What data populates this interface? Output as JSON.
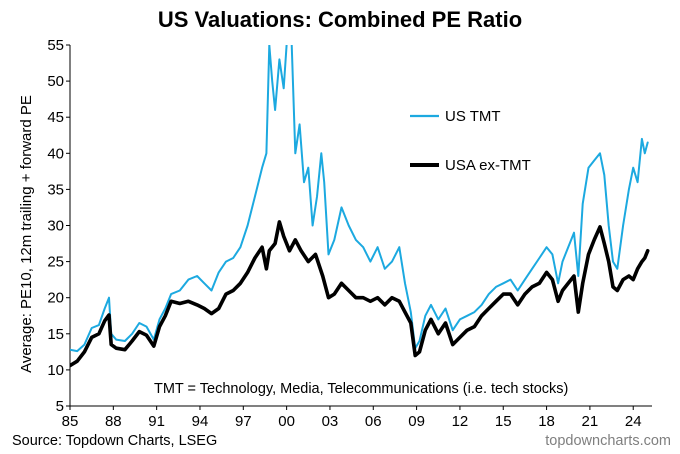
{
  "chart_data": {
    "type": "line",
    "title": "US Valuations: Combined PE Ratio",
    "ylabel": "Average: PE10, 12m trailing + forward PE",
    "xlabel": "",
    "xlim": [
      1985,
      2025.3
    ],
    "ylim": [
      5,
      55
    ],
    "x_ticks": [
      "85",
      "88",
      "91",
      "94",
      "97",
      "00",
      "03",
      "06",
      "09",
      "12",
      "15",
      "18",
      "21",
      "24"
    ],
    "y_ticks": [
      "5",
      "10",
      "15",
      "20",
      "25",
      "30",
      "35",
      "40",
      "45",
      "50",
      "55"
    ],
    "grid": false,
    "legend_position": "upper-center",
    "series": [
      {
        "name": "US TMT",
        "color": "#1ca9e0",
        "points": [
          [
            1985.0,
            12.8
          ],
          [
            1985.5,
            12.6
          ],
          [
            1986.0,
            13.5
          ],
          [
            1986.5,
            15.8
          ],
          [
            1987.0,
            16.2
          ],
          [
            1987.4,
            18.5
          ],
          [
            1987.7,
            20.0
          ],
          [
            1987.85,
            15.0
          ],
          [
            1988.2,
            14.2
          ],
          [
            1988.8,
            14.0
          ],
          [
            1989.3,
            15.0
          ],
          [
            1989.8,
            16.5
          ],
          [
            1990.3,
            16.0
          ],
          [
            1990.8,
            14.2
          ],
          [
            1991.2,
            17.0
          ],
          [
            1991.6,
            18.5
          ],
          [
            1992.0,
            20.5
          ],
          [
            1992.6,
            21.0
          ],
          [
            1993.2,
            22.5
          ],
          [
            1993.8,
            23.0
          ],
          [
            1994.3,
            22.0
          ],
          [
            1994.8,
            21.0
          ],
          [
            1995.3,
            23.5
          ],
          [
            1995.8,
            25.0
          ],
          [
            1996.3,
            25.5
          ],
          [
            1996.8,
            27.0
          ],
          [
            1997.3,
            30.0
          ],
          [
            1997.8,
            34.0
          ],
          [
            1998.3,
            38.0
          ],
          [
            1998.6,
            40.0
          ],
          [
            1998.8,
            55.0
          ],
          [
            1999.0,
            50.0
          ],
          [
            1999.2,
            46.0
          ],
          [
            1999.5,
            53.0
          ],
          [
            1999.8,
            49.0
          ],
          [
            2000.0,
            55.0
          ],
          [
            2000.3,
            58.0
          ],
          [
            2000.6,
            40.0
          ],
          [
            2000.9,
            44.0
          ],
          [
            2001.2,
            36.0
          ],
          [
            2001.5,
            38.0
          ],
          [
            2001.8,
            30.0
          ],
          [
            2002.1,
            34.0
          ],
          [
            2002.4,
            40.0
          ],
          [
            2002.6,
            36.0
          ],
          [
            2002.9,
            26.0
          ],
          [
            2003.3,
            28.0
          ],
          [
            2003.8,
            32.5
          ],
          [
            2004.3,
            30.0
          ],
          [
            2004.8,
            28.0
          ],
          [
            2005.3,
            27.0
          ],
          [
            2005.8,
            25.0
          ],
          [
            2006.3,
            27.0
          ],
          [
            2006.8,
            24.0
          ],
          [
            2007.3,
            25.0
          ],
          [
            2007.8,
            27.0
          ],
          [
            2008.2,
            22.0
          ],
          [
            2008.6,
            18.0
          ],
          [
            2008.9,
            13.0
          ],
          [
            2009.2,
            14.0
          ],
          [
            2009.6,
            17.5
          ],
          [
            2010.0,
            19.0
          ],
          [
            2010.5,
            17.0
          ],
          [
            2011.0,
            18.5
          ],
          [
            2011.5,
            15.5
          ],
          [
            2012.0,
            17.0
          ],
          [
            2012.5,
            17.5
          ],
          [
            2013.0,
            18.0
          ],
          [
            2013.5,
            19.0
          ],
          [
            2014.0,
            20.5
          ],
          [
            2014.5,
            21.5
          ],
          [
            2015.0,
            22.0
          ],
          [
            2015.5,
            22.5
          ],
          [
            2016.0,
            21.0
          ],
          [
            2016.5,
            22.5
          ],
          [
            2017.0,
            24.0
          ],
          [
            2017.5,
            25.5
          ],
          [
            2018.0,
            27.0
          ],
          [
            2018.4,
            26.0
          ],
          [
            2018.8,
            22.0
          ],
          [
            2019.1,
            25.0
          ],
          [
            2019.5,
            27.0
          ],
          [
            2019.9,
            29.0
          ],
          [
            2020.2,
            23.0
          ],
          [
            2020.5,
            33.0
          ],
          [
            2020.9,
            38.0
          ],
          [
            2021.3,
            39.0
          ],
          [
            2021.7,
            40.0
          ],
          [
            2022.0,
            37.0
          ],
          [
            2022.3,
            30.0
          ],
          [
            2022.6,
            25.0
          ],
          [
            2022.9,
            24.0
          ],
          [
            2023.3,
            30.0
          ],
          [
            2023.7,
            35.0
          ],
          [
            2024.0,
            38.0
          ],
          [
            2024.3,
            36.0
          ],
          [
            2024.6,
            42.0
          ],
          [
            2024.8,
            40.0
          ],
          [
            2025.0,
            41.5
          ]
        ]
      },
      {
        "name": "USA ex-TMT",
        "color": "#000000",
        "points": [
          [
            1985.0,
            10.6
          ],
          [
            1985.5,
            11.2
          ],
          [
            1986.0,
            12.5
          ],
          [
            1986.5,
            14.5
          ],
          [
            1987.0,
            15.0
          ],
          [
            1987.4,
            16.8
          ],
          [
            1987.7,
            17.6
          ],
          [
            1987.85,
            13.5
          ],
          [
            1988.2,
            13.0
          ],
          [
            1988.8,
            12.8
          ],
          [
            1989.3,
            14.0
          ],
          [
            1989.8,
            15.3
          ],
          [
            1990.3,
            14.8
          ],
          [
            1990.8,
            13.3
          ],
          [
            1991.2,
            16.0
          ],
          [
            1991.6,
            17.5
          ],
          [
            1992.0,
            19.5
          ],
          [
            1992.6,
            19.2
          ],
          [
            1993.2,
            19.5
          ],
          [
            1993.8,
            19.0
          ],
          [
            1994.3,
            18.5
          ],
          [
            1994.8,
            17.8
          ],
          [
            1995.3,
            18.5
          ],
          [
            1995.8,
            20.5
          ],
          [
            1996.3,
            21.0
          ],
          [
            1996.8,
            22.0
          ],
          [
            1997.3,
            23.5
          ],
          [
            1997.8,
            25.5
          ],
          [
            1998.3,
            27.0
          ],
          [
            1998.6,
            24.0
          ],
          [
            1998.8,
            26.5
          ],
          [
            1999.2,
            27.5
          ],
          [
            1999.5,
            30.5
          ],
          [
            1999.8,
            28.5
          ],
          [
            2000.2,
            26.5
          ],
          [
            2000.6,
            28.0
          ],
          [
            2001.0,
            26.5
          ],
          [
            2001.5,
            25.0
          ],
          [
            2002.0,
            26.0
          ],
          [
            2002.5,
            23.0
          ],
          [
            2002.9,
            20.0
          ],
          [
            2003.3,
            20.5
          ],
          [
            2003.8,
            22.0
          ],
          [
            2004.3,
            21.0
          ],
          [
            2004.8,
            20.0
          ],
          [
            2005.3,
            20.0
          ],
          [
            2005.8,
            19.5
          ],
          [
            2006.3,
            20.0
          ],
          [
            2006.8,
            19.0
          ],
          [
            2007.3,
            20.0
          ],
          [
            2007.8,
            19.5
          ],
          [
            2008.2,
            18.0
          ],
          [
            2008.6,
            16.5
          ],
          [
            2008.9,
            12.0
          ],
          [
            2009.2,
            12.5
          ],
          [
            2009.6,
            15.5
          ],
          [
            2010.0,
            17.0
          ],
          [
            2010.5,
            15.0
          ],
          [
            2011.0,
            16.5
          ],
          [
            2011.5,
            13.5
          ],
          [
            2012.0,
            14.5
          ],
          [
            2012.5,
            15.5
          ],
          [
            2013.0,
            16.0
          ],
          [
            2013.5,
            17.5
          ],
          [
            2014.0,
            18.5
          ],
          [
            2014.5,
            19.5
          ],
          [
            2015.0,
            20.5
          ],
          [
            2015.5,
            20.5
          ],
          [
            2016.0,
            19.0
          ],
          [
            2016.5,
            20.5
          ],
          [
            2017.0,
            21.5
          ],
          [
            2017.5,
            22.0
          ],
          [
            2018.0,
            23.5
          ],
          [
            2018.4,
            22.5
          ],
          [
            2018.8,
            19.5
          ],
          [
            2019.1,
            21.0
          ],
          [
            2019.5,
            22.0
          ],
          [
            2019.9,
            23.0
          ],
          [
            2020.2,
            18.0
          ],
          [
            2020.5,
            22.0
          ],
          [
            2020.9,
            26.0
          ],
          [
            2021.3,
            28.0
          ],
          [
            2021.7,
            29.8
          ],
          [
            2022.0,
            27.5
          ],
          [
            2022.3,
            25.0
          ],
          [
            2022.6,
            21.5
          ],
          [
            2022.9,
            21.0
          ],
          [
            2023.3,
            22.5
          ],
          [
            2023.7,
            23.0
          ],
          [
            2024.0,
            22.5
          ],
          [
            2024.3,
            24.0
          ],
          [
            2024.6,
            25.0
          ],
          [
            2024.8,
            25.5
          ],
          [
            2025.0,
            26.5
          ]
        ]
      }
    ],
    "annotations": [
      "TMT = Technology, Media, Telecommunications  (i.e. tech stocks)"
    ]
  },
  "footer": {
    "source": "Source: Topdown Charts, LSEG",
    "brand": "topdowncharts.com"
  }
}
